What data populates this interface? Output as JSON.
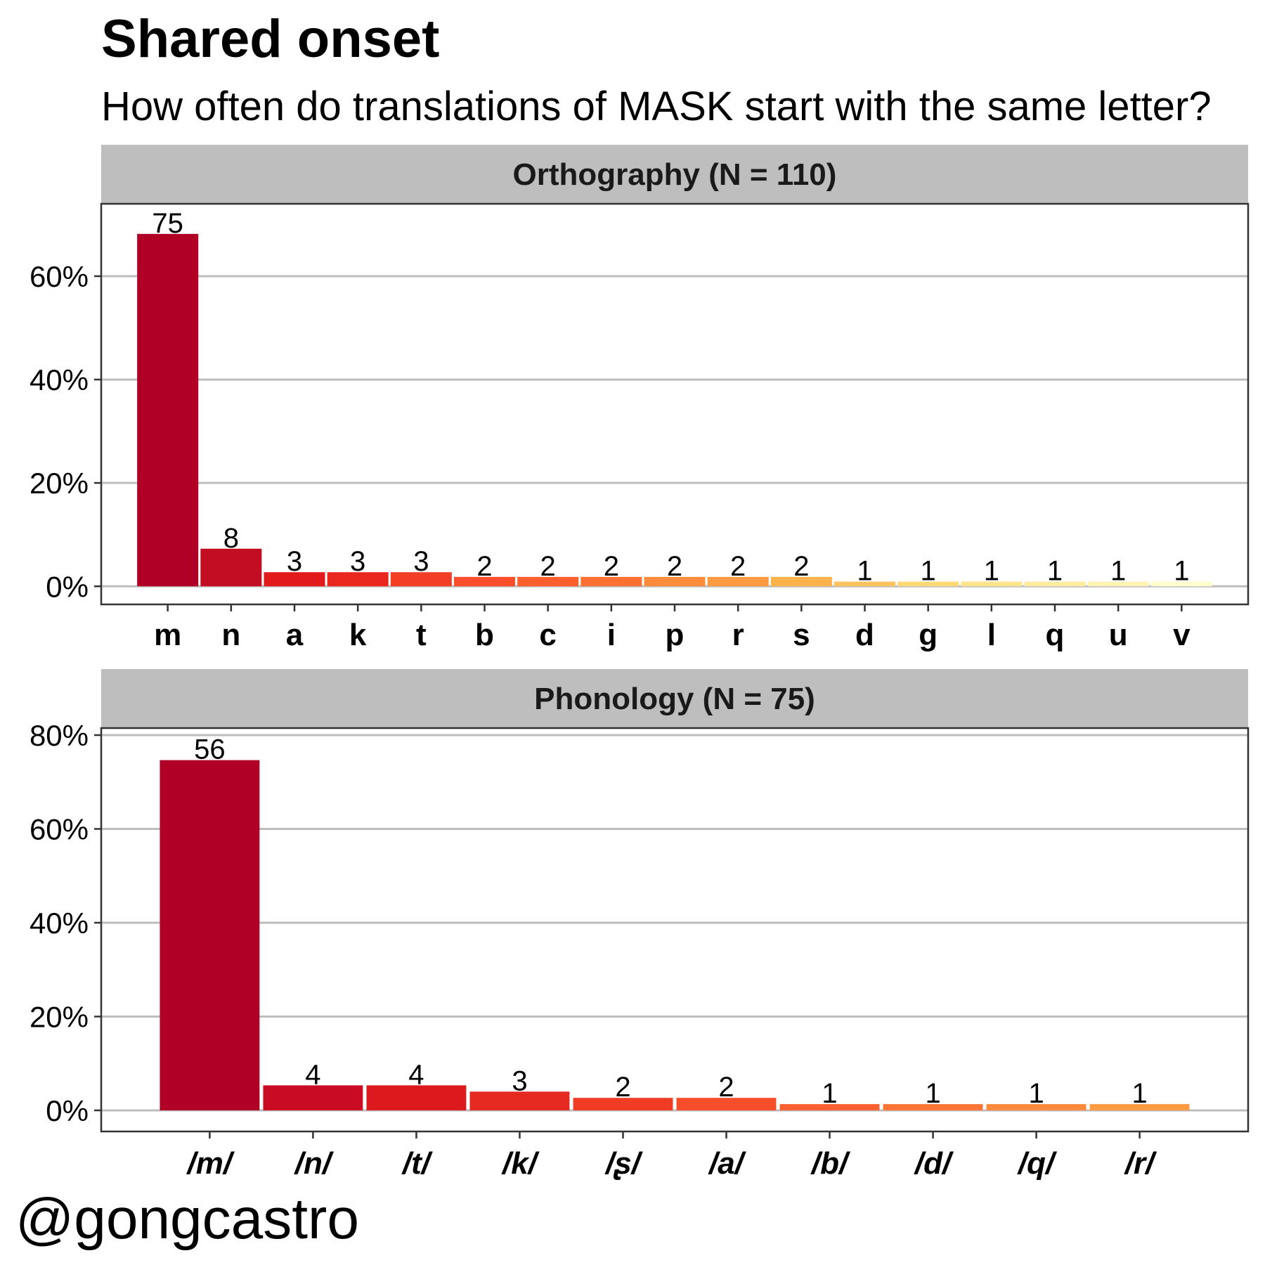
{
  "title": "Shared onset",
  "subtitle": "How often do translations of MASK start with the same letter?",
  "credit": "@gongcastro",
  "chart_data": [
    {
      "type": "bar",
      "facet_title": "Orthography (N = 110)",
      "categories": [
        "m",
        "n",
        "a",
        "k",
        "t",
        "b",
        "c",
        "i",
        "p",
        "r",
        "s",
        "d",
        "g",
        "l",
        "q",
        "u",
        "v"
      ],
      "values": [
        75,
        8,
        3,
        3,
        3,
        2,
        2,
        2,
        2,
        2,
        2,
        1,
        1,
        1,
        1,
        1,
        1
      ],
      "total": 110,
      "y_tick_labels": [
        "0%",
        "20%",
        "40%",
        "60%"
      ],
      "y_ticks": [
        0,
        0.2,
        0.4,
        0.6
      ],
      "ylim": [
        -0.035,
        0.74
      ],
      "colors": [
        "#b10026",
        "#c20d23",
        "#e31a1c",
        "#e9271e",
        "#f33d25",
        "#fc4e2a",
        "#fc5e2e",
        "#fd7034",
        "#fd8d3c",
        "#fd9a42",
        "#feb24c",
        "#fec35f",
        "#fed976",
        "#fee48a",
        "#ffedA0",
        "#fff4b5",
        "#ffffcc"
      ],
      "grid": true
    },
    {
      "type": "bar",
      "facet_title": "Phonology (N = 75)",
      "categories": [
        "/m/",
        "/n/",
        "/t/",
        "/k/",
        "/ʂ/",
        "/a/",
        "/b/",
        "/d/",
        "/q/",
        "/r/"
      ],
      "values": [
        56,
        4,
        4,
        3,
        2,
        2,
        1,
        1,
        1,
        1
      ],
      "total": 75,
      "y_tick_labels": [
        "0%",
        "20%",
        "40%",
        "60%",
        "80%"
      ],
      "y_ticks": [
        0,
        0.2,
        0.4,
        0.6,
        0.8
      ],
      "ylim": [
        -0.045,
        0.815
      ],
      "colors": [
        "#b10026",
        "#c90c23",
        "#dc1a1e",
        "#e62a22",
        "#f03b25",
        "#f64d2a",
        "#fa6030",
        "#fc7536",
        "#fd8a3c",
        "#fd9a42"
      ],
      "grid": true
    }
  ]
}
